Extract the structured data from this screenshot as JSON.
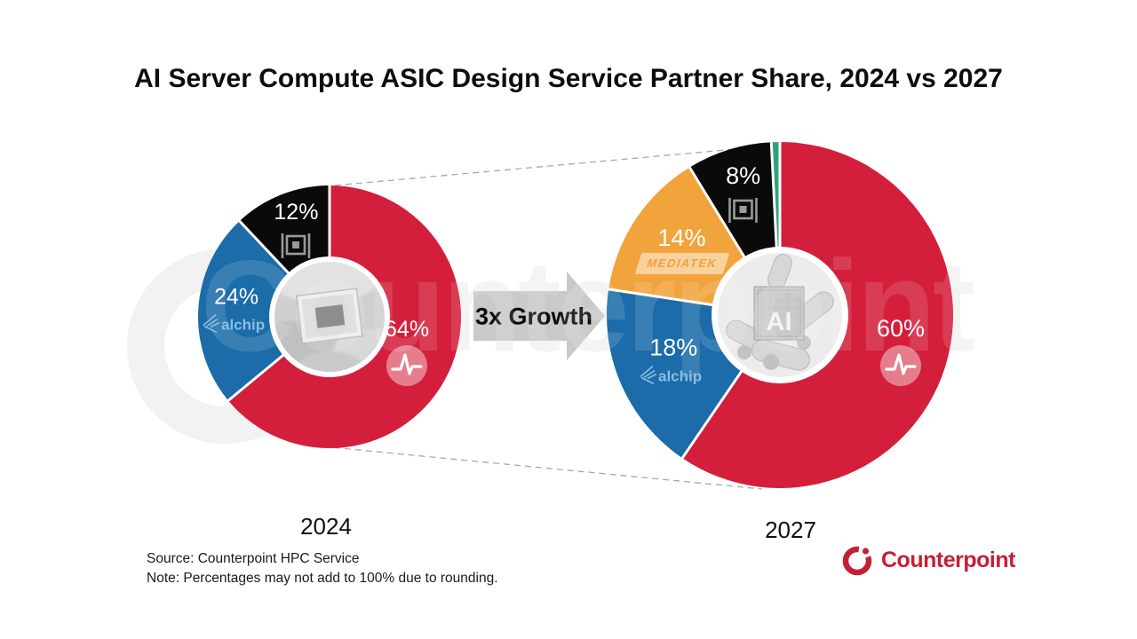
{
  "title": "AI Server Compute ASIC Design Service Partner Share, 2024 vs 2027",
  "watermark": {
    "text": "Counterpoint"
  },
  "growth_label": "3x Growth",
  "footer": {
    "source": "Source: Counterpoint HPC Service",
    "note": "Note: Percentages may not add to 100% due to rounding.",
    "brand": "Counterpoint"
  },
  "chart_data": [
    {
      "id": "2024",
      "type": "pie",
      "donut": true,
      "year_label": "2024",
      "center_image": "hand-holding-chip-photo",
      "segments": [
        {
          "name": "Broadcom",
          "value": 64,
          "label": "64%",
          "color": "#D41F3C",
          "logo": "broadcom-pulse-icon",
          "label_r": 0.65
        },
        {
          "name": "Alchip",
          "value": 24,
          "label": "24%",
          "color": "#1B6CA8",
          "logo": "alchip-logo",
          "logo_text": "alchip",
          "label_r": 0.71
        },
        {
          "name": "GUC",
          "value": 12,
          "label": "12%",
          "color": "#0A0A0B",
          "logo": "guc-logo",
          "label_r": 0.69
        }
      ]
    },
    {
      "id": "2027",
      "type": "pie",
      "donut": true,
      "year_label": "2027",
      "center_image": "robot-hand-ai-chip-photo",
      "center_caption": "AI",
      "segments": [
        {
          "name": "Broadcom",
          "value": 60,
          "label": "60%",
          "color": "#D41F3C",
          "logo": "broadcom-pulse-icon",
          "label_r": 0.73
        },
        {
          "name": "Alchip",
          "value": 18,
          "label": "18%",
          "color": "#1B6CA8",
          "logo": "alchip-logo",
          "logo_text": "alchip",
          "label_r": 0.67
        },
        {
          "name": "MediaTek",
          "value": 14,
          "label": "14%",
          "color": "#F1A43C",
          "logo": "mediatek-logo",
          "logo_text": "MEDIATEK",
          "label_r": 0.68
        },
        {
          "name": "GUC",
          "value": 8,
          "label": "8%",
          "color": "#0A0A0B",
          "logo": "guc-logo",
          "label_r": 0.72
        },
        {
          "name": "Others",
          "value": 0.8,
          "label": "",
          "color": "#2DA379"
        }
      ]
    }
  ]
}
